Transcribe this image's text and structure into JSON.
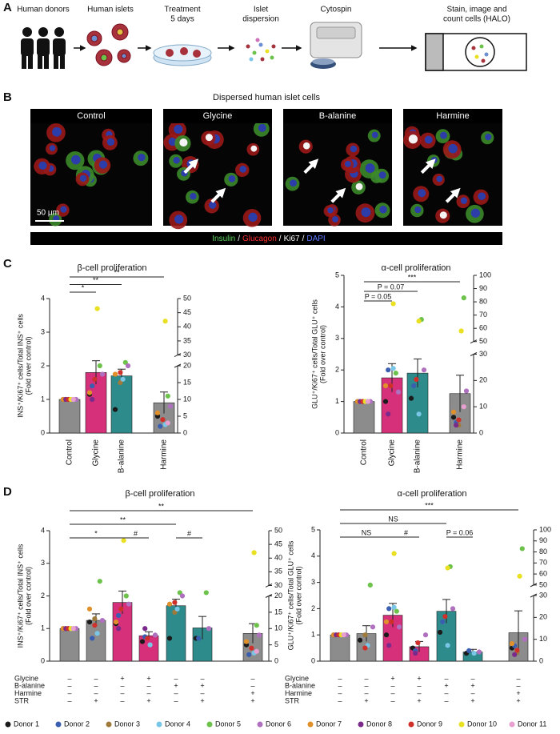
{
  "panel_a": {
    "letter": "A",
    "steps": [
      {
        "lines": [
          "Human donors"
        ]
      },
      {
        "lines": [
          "Human islets"
        ]
      },
      {
        "lines": [
          "Treatment",
          "5 days"
        ]
      },
      {
        "lines": [
          "Islet",
          "dispersion"
        ]
      },
      {
        "lines": [
          "Cytospin"
        ]
      },
      {
        "lines": [
          "Stain, image and",
          "count cells (HALO)"
        ]
      }
    ]
  },
  "panel_b": {
    "letter": "B",
    "title": "Dispersed human islet cells",
    "images": [
      "Control",
      "Glycine",
      "B-alanine",
      "Harmine"
    ],
    "scale_bar": "50 μm",
    "stains": [
      {
        "name": "Insulin",
        "color": "#5fd35f"
      },
      {
        "name": "Glucagon",
        "color": "#ff3030"
      },
      {
        "name": "Ki67",
        "color": "#ffffff"
      },
      {
        "name": "DAPI",
        "color": "#5b7bff"
      }
    ],
    "separator": "/"
  },
  "panel_letters": {
    "c": "C",
    "d": "D"
  },
  "chart_data": [
    {
      "type": "bar",
      "title": "β-cell proliferation",
      "ylabel": [
        "INS⁺/Ki67⁺ cells/Total INS⁺ cells",
        "(Fold over control)"
      ],
      "categories": [
        "Control",
        "Glycine",
        "B-alanine",
        "Harmine"
      ],
      "values": [
        1,
        1.8,
        1.7,
        9
      ],
      "errors": [
        0,
        0.35,
        0.2,
        3.2
      ],
      "colors": [
        "#8c8c8c",
        "#d6307a",
        "#2e8b8b",
        "#8c8c8c"
      ],
      "axis": [
        "y",
        "y",
        "y",
        "y2"
      ],
      "points": [
        [
          1,
          1.15,
          0.7,
          5
        ],
        [
          1,
          1.4,
          null,
          2
        ],
        [
          1,
          null,
          1.5,
          null
        ],
        [
          1,
          null,
          1.6,
          2.5
        ],
        [
          1,
          2.0,
          2.1,
          11
        ],
        [
          1,
          1.75,
          2.0,
          8
        ],
        [
          1,
          1.2,
          1.75,
          6
        ],
        [
          1,
          1.0,
          null,
          null
        ],
        [
          1,
          1.6,
          1.8,
          4
        ],
        [
          1,
          3.7,
          null,
          42
        ],
        [
          1,
          null,
          null,
          3
        ]
      ],
      "ylim": [
        0,
        4
      ],
      "yticks": [
        0,
        1,
        2,
        3,
        4
      ],
      "y2lim": [
        0,
        50
      ],
      "y2ticks": [
        0,
        5,
        10,
        15,
        20,
        30,
        35,
        40,
        45,
        50
      ],
      "y2break": [
        20,
        30
      ],
      "comparisons": [
        {
          "span": [
            0,
            1
          ],
          "label": "*"
        },
        {
          "span": [
            0,
            2
          ],
          "label": "**"
        },
        {
          "span": [
            0,
            3
          ],
          "label": "**"
        }
      ]
    },
    {
      "type": "bar",
      "title": "α-cell proliferation",
      "ylabel": [
        "GLU⁺/Ki67⁺ cells/Total GLU⁺ cells",
        "(Fold over control)"
      ],
      "categories": [
        "Control",
        "Glycine",
        "B-alanine",
        "Harmine"
      ],
      "values": [
        1,
        1.75,
        1.9,
        15
      ],
      "errors": [
        0,
        0.45,
        0.45,
        7
      ],
      "colors": [
        "#8c8c8c",
        "#d6307a",
        "#2e8b8b",
        "#8c8c8c"
      ],
      "axis": [
        "y",
        "y",
        "y",
        "y2"
      ],
      "points": [
        [
          1,
          1.0,
          1.1,
          6
        ],
        [
          1,
          2.0,
          1.5,
          4
        ],
        [
          1,
          null,
          null,
          3
        ],
        [
          1,
          2.05,
          0.6,
          null
        ],
        [
          1,
          1.9,
          3.6,
          83
        ],
        [
          1,
          1.3,
          2.0,
          16
        ],
        [
          1,
          1.5,
          null,
          8
        ],
        [
          1,
          0.6,
          null,
          3
        ],
        [
          1,
          1.5,
          1.7,
          5
        ],
        [
          1,
          4.1,
          3.55,
          58
        ],
        [
          1,
          null,
          null,
          10
        ]
      ],
      "ylim": [
        0,
        5
      ],
      "yticks": [
        0,
        1,
        2,
        3,
        4,
        5
      ],
      "y2lim": [
        0,
        100
      ],
      "y2ticks": [
        0,
        10,
        20,
        30,
        50,
        60,
        70,
        80,
        90,
        100
      ],
      "y2break": [
        30,
        50
      ],
      "comparisons": [
        {
          "span": [
            0,
            1
          ],
          "label": "P = 0.05"
        },
        {
          "span": [
            0,
            2
          ],
          "label": "P = 0.07"
        },
        {
          "span": [
            0,
            3
          ],
          "label": "***"
        }
      ]
    },
    {
      "type": "bar",
      "title": "β-cell proliferation",
      "ylabel": [
        "INS⁺/Ki67⁺ cells/Total INS⁺ cells",
        "(Fold over control)"
      ],
      "condition_rows": [
        {
          "label": "Glycine",
          "signs": [
            "–",
            "–",
            "+",
            "+",
            "–",
            "–",
            "–"
          ]
        },
        {
          "label": "B-alanine",
          "signs": [
            "–",
            "–",
            "–",
            "–",
            "+",
            "+",
            "–"
          ]
        },
        {
          "label": "Harmine",
          "signs": [
            "–",
            "–",
            "–",
            "–",
            "–",
            "–",
            "+"
          ]
        },
        {
          "label": "STR",
          "signs": [
            "–",
            "+",
            "–",
            "+",
            "–",
            "+",
            "+"
          ]
        }
      ],
      "values": [
        1,
        1.25,
        1.8,
        0.78,
        1.7,
        1.02,
        8.5
      ],
      "errors": [
        0,
        0.2,
        0.35,
        0.12,
        0.2,
        0.35,
        3
      ],
      "colors": [
        "#8c8c8c",
        "#8c8c8c",
        "#d6307a",
        "#d6307a",
        "#2e8b8b",
        "#2e8b8b",
        "#8c8c8c"
      ],
      "axis": [
        "y",
        "y",
        "y",
        "y",
        "y",
        "y",
        "y2"
      ],
      "points": [
        [
          1,
          1.2,
          1.15,
          0.6,
          0.7,
          0.7,
          5
        ],
        [
          1,
          0.7,
          1.4,
          0.75,
          null,
          0.7,
          2
        ],
        [
          1,
          1.3,
          null,
          null,
          1.5,
          null,
          null
        ],
        [
          1,
          0.85,
          null,
          0.5,
          1.6,
          null,
          2.5
        ],
        [
          1,
          2.45,
          2.0,
          null,
          2.1,
          2.1,
          11
        ],
        [
          1,
          1.25,
          1.75,
          0.8,
          2.0,
          1.0,
          8
        ],
        [
          1,
          1.6,
          1.2,
          null,
          1.75,
          null,
          6
        ],
        [
          1,
          null,
          1.0,
          1.0,
          null,
          null,
          null
        ],
        [
          1,
          1.1,
          1.6,
          0.7,
          1.8,
          null,
          4
        ],
        [
          1,
          null,
          3.7,
          null,
          null,
          null,
          42
        ],
        [
          1,
          null,
          null,
          null,
          null,
          null,
          3
        ]
      ],
      "ylim": [
        0,
        4
      ],
      "yticks": [
        0,
        1,
        2,
        3,
        4
      ],
      "y2lim": [
        0,
        50
      ],
      "y2ticks": [
        0,
        5,
        10,
        15,
        20,
        30,
        35,
        40,
        45,
        50
      ],
      "y2break": [
        20,
        30
      ],
      "comparisons": [
        {
          "span": [
            0,
            2
          ],
          "label": "*"
        },
        {
          "span": [
            2,
            3
          ],
          "label": "#"
        },
        {
          "span": [
            0,
            4
          ],
          "label": "**"
        },
        {
          "span": [
            4,
            5
          ],
          "label": "#"
        },
        {
          "span": [
            0,
            6
          ],
          "label": "**"
        }
      ]
    },
    {
      "type": "bar",
      "title": "α-cell proliferation",
      "ylabel": [
        "GLU⁺/Ki67⁺ cells/Total GLU⁺ cells",
        "(Fold over control)"
      ],
      "condition_rows": [
        {
          "label": "Glycine",
          "signs": [
            "–",
            "–",
            "+",
            "+",
            "–",
            "–",
            "–"
          ]
        },
        {
          "label": "B-alanine",
          "signs": [
            "–",
            "–",
            "–",
            "–",
            "+",
            "+",
            "–"
          ]
        },
        {
          "label": "Harmine",
          "signs": [
            "–",
            "–",
            "–",
            "–",
            "–",
            "–",
            "+"
          ]
        },
        {
          "label": "STR",
          "signs": [
            "–",
            "+",
            "–",
            "+",
            "–",
            "+",
            "+"
          ]
        }
      ],
      "values": [
        1,
        1.05,
        1.75,
        0.55,
        1.9,
        0.35,
        13
      ],
      "errors": [
        0,
        0.3,
        0.45,
        0.2,
        0.45,
        0.1,
        10
      ],
      "colors": [
        "#8c8c8c",
        "#8c8c8c",
        "#d6307a",
        "#d6307a",
        "#2e8b8b",
        "#2e8b8b",
        "#8c8c8c"
      ],
      "axis": [
        "y",
        "y",
        "y",
        "y",
        "y",
        "y",
        "y2"
      ],
      "points": [
        [
          1,
          0.8,
          1.0,
          0.5,
          1.1,
          0.3,
          6
        ],
        [
          1,
          null,
          2.0,
          0.4,
          1.5,
          0.4,
          7
        ],
        [
          1,
          1.0,
          null,
          null,
          null,
          null,
          4
        ],
        [
          1,
          0.6,
          2.05,
          null,
          0.6,
          0.3,
          null
        ],
        [
          1,
          2.9,
          1.9,
          null,
          3.6,
          null,
          83
        ],
        [
          1,
          1.3,
          1.3,
          1.0,
          2.0,
          0.35,
          10
        ],
        [
          1,
          null,
          1.5,
          null,
          null,
          null,
          8
        ],
        [
          1,
          null,
          0.6,
          0.3,
          null,
          null,
          3
        ],
        [
          1,
          0.5,
          1.5,
          0.7,
          1.7,
          null,
          5
        ],
        [
          1,
          null,
          4.1,
          null,
          3.55,
          null,
          58
        ],
        [
          1,
          null,
          null,
          null,
          null,
          null,
          null
        ]
      ],
      "ylim": [
        0,
        5
      ],
      "yticks": [
        0,
        1,
        2,
        3,
        4,
        5
      ],
      "y2lim": [
        0,
        100
      ],
      "y2ticks": [
        0,
        10,
        20,
        30,
        50,
        60,
        70,
        80,
        90,
        100
      ],
      "y2break": [
        30,
        50
      ],
      "comparisons": [
        {
          "span": [
            0,
            2
          ],
          "label": "NS"
        },
        {
          "span": [
            2,
            3
          ],
          "label": "#"
        },
        {
          "span": [
            0,
            4
          ],
          "label": "NS"
        },
        {
          "span": [
            4,
            5
          ],
          "label": "P = 0.06"
        },
        {
          "span": [
            0,
            6
          ],
          "label": "***"
        }
      ]
    }
  ],
  "legend": [
    {
      "name": "Donor 1",
      "color": "#1a1a1a"
    },
    {
      "name": "Donor 2",
      "color": "#3a5fb0"
    },
    {
      "name": "Donor 3",
      "color": "#a07a3a"
    },
    {
      "name": "Donor 4",
      "color": "#7ac6e6"
    },
    {
      "name": "Donor 5",
      "color": "#6cc24a"
    },
    {
      "name": "Donor 6",
      "color": "#b070c0"
    },
    {
      "name": "Donor 7",
      "color": "#e0902a"
    },
    {
      "name": "Donor 8",
      "color": "#7a2a8a"
    },
    {
      "name": "Donor 9",
      "color": "#d0302a"
    },
    {
      "name": "Donor 10",
      "color": "#e8e020"
    },
    {
      "name": "Donor 11",
      "color": "#e8a0d0"
    }
  ]
}
